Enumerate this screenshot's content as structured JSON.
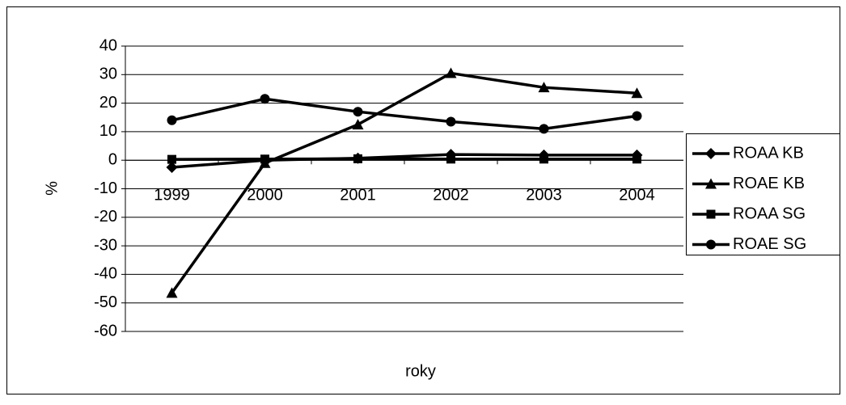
{
  "chart_data": {
    "type": "line",
    "categories": [
      "1999",
      "2000",
      "2001",
      "2002",
      "2003",
      "2004"
    ],
    "series": [
      {
        "name": "ROAA KB",
        "color": "#000000",
        "marker": "diamond",
        "values": [
          -2.5,
          0,
          0.7,
          2,
          1.8,
          1.8
        ]
      },
      {
        "name": "ROAE KB",
        "color": "#000000",
        "marker": "triangle",
        "values": [
          -46.5,
          -1,
          12.5,
          30.5,
          25.5,
          23.5
        ]
      },
      {
        "name": "ROAA SG",
        "color": "#000000",
        "marker": "square",
        "values": [
          0.3,
          0.4,
          0.5,
          0.4,
          0.4,
          0.4
        ]
      },
      {
        "name": "ROAE SG",
        "color": "#000000",
        "marker": "circle",
        "values": [
          14,
          21.5,
          17,
          13.5,
          11,
          15.5
        ]
      }
    ],
    "x_label": "roky",
    "y_label": "%",
    "ylim": [
      -60,
      40
    ],
    "yticks": [
      -60,
      -50,
      -40,
      -30,
      -20,
      -10,
      0,
      10,
      20,
      30,
      40
    ],
    "grid": true,
    "legend": "right"
  }
}
